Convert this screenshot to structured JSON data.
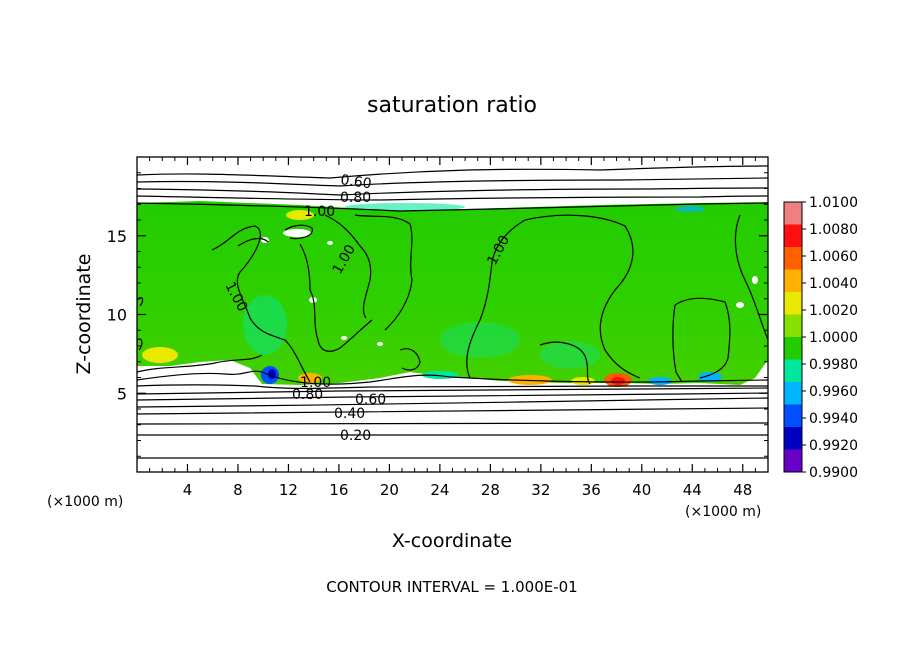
{
  "chart_data": {
    "type": "heatmap",
    "title": "saturation ratio",
    "xlabel": "X-coordinate",
    "ylabel": "Z-coordinate",
    "x_unit": "(×1000 m)",
    "y_unit": "(×1000 m)",
    "xlim": [
      0,
      50
    ],
    "ylim": [
      0,
      20
    ],
    "x_ticks": [
      "4",
      "8",
      "12",
      "16",
      "20",
      "24",
      "28",
      "32",
      "36",
      "40",
      "44",
      "48"
    ],
    "x_tick_values": [
      4,
      8,
      12,
      16,
      20,
      24,
      28,
      32,
      36,
      40,
      44,
      48
    ],
    "y_ticks": [
      "5",
      "10",
      "15"
    ],
    "y_tick_values": [
      5,
      10,
      15
    ],
    "colorbar": {
      "labels": [
        "1.0100",
        "1.0080",
        "1.0060",
        "1.0040",
        "1.0020",
        "1.0000",
        "0.9980",
        "0.9960",
        "0.9940",
        "0.9920",
        "0.9900"
      ],
      "values": [
        1.01,
        1.008,
        1.006,
        1.004,
        1.002,
        1.0,
        0.998,
        0.996,
        0.994,
        0.992,
        0.99
      ],
      "colors": [
        "#f08080",
        "#ff1010",
        "#ff6000",
        "#ffb000",
        "#e8e800",
        "#88e000",
        "#22cc00",
        "#00e8a0",
        "#00b4ff",
        "#0050ff",
        "#0000c0",
        "#6a00c8"
      ]
    },
    "contour_labels": [
      "0.60",
      "0.80",
      "1.00",
      "1.00",
      "1.00",
      "1.00",
      "1.00",
      "0.80",
      "0.60",
      "0.40",
      "0.20"
    ],
    "footer": "CONTOUR INTERVAL = 1.000E-01"
  }
}
